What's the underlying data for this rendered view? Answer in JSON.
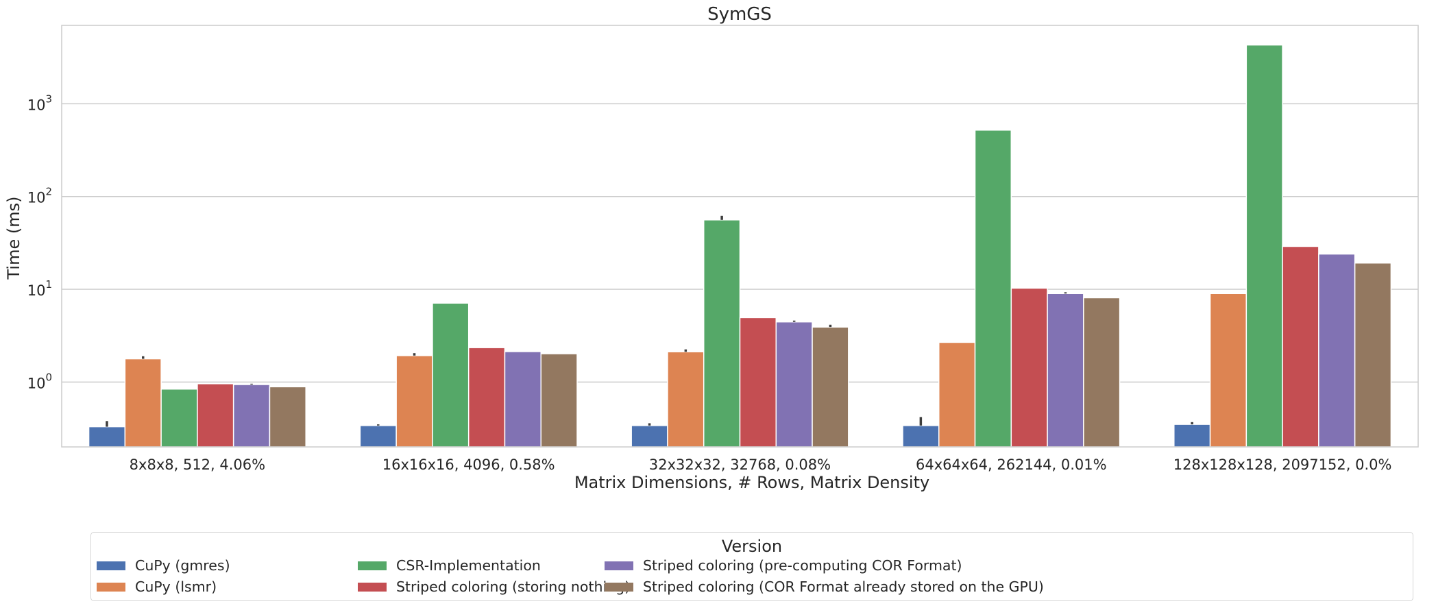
{
  "chart_data": {
    "type": "bar",
    "title": "SymGS",
    "xlabel": "Matrix Dimensions, # Rows, Matrix Density",
    "ylabel": "Time (ms)",
    "yscale": "log",
    "ylim": [
      0.2,
      7000
    ],
    "yticks": [
      1,
      10,
      100,
      1000
    ],
    "ytick_labels": [
      {
        "base": "10",
        "exp": "0"
      },
      {
        "base": "10",
        "exp": "1"
      },
      {
        "base": "10",
        "exp": "2"
      },
      {
        "base": "10",
        "exp": "3"
      }
    ],
    "grid": true,
    "legend": {
      "title": "Version",
      "placement": "bottom-center"
    },
    "categories": [
      "8x8x8, 512, 4.06%",
      "16x16x16, 4096, 0.58%",
      "32x32x32, 32768, 0.08%",
      "64x64x64, 262144, 0.01%",
      "128x128x128, 2097152, 0.0%"
    ],
    "series": [
      {
        "name": "CuPy (gmres)",
        "color": "#4c72b0",
        "values": [
          0.33,
          0.34,
          0.34,
          0.34,
          0.35
        ],
        "error_high": [
          0.38,
          0.35,
          0.36,
          0.42,
          0.37
        ]
      },
      {
        "name": "CuPy (lsmr)",
        "color": "#dd8452",
        "values": [
          1.78,
          1.93,
          2.12,
          2.68,
          9.0
        ],
        "error_high": [
          1.9,
          2.05,
          2.25,
          null,
          null
        ]
      },
      {
        "name": "CSR-Implementation",
        "color": "#55a868",
        "values": [
          0.84,
          7.1,
          56,
          520,
          4300
        ],
        "error_high": [
          null,
          null,
          62,
          null,
          null
        ]
      },
      {
        "name": "Striped coloring (storing nothing)",
        "color": "#c44e52",
        "values": [
          0.96,
          2.35,
          4.95,
          10.3,
          29
        ],
        "error_high": [
          null,
          null,
          null,
          null,
          null
        ]
      },
      {
        "name": "Striped coloring (pre-computing COR Format)",
        "color": "#8172b3",
        "values": [
          0.94,
          2.13,
          4.45,
          9.0,
          24
        ],
        "error_high": [
          0.96,
          null,
          4.6,
          9.3,
          null
        ]
      },
      {
        "name": "Striped coloring (COR Format already stored on the GPU)",
        "color": "#937860",
        "values": [
          0.89,
          2.02,
          3.92,
          8.1,
          19.2
        ],
        "error_high": [
          null,
          null,
          4.15,
          null,
          null
        ]
      }
    ]
  }
}
